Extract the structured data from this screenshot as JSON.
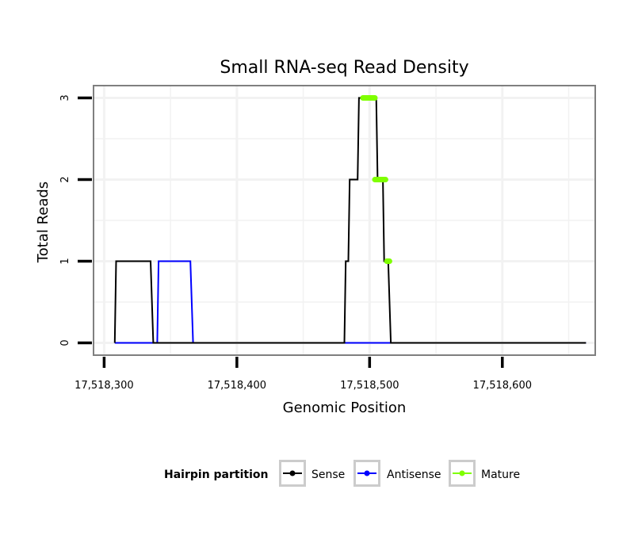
{
  "chart_data": {
    "type": "line",
    "title": "Small RNA-seq Read Density",
    "xlabel": "Genomic Position",
    "ylabel": "Total Reads",
    "xlim": [
      17518292,
      17518670
    ],
    "ylim": [
      -0.15,
      3.15
    ],
    "x_ticks": [
      17518300,
      17518400,
      17518500,
      17518600
    ],
    "x_tick_labels": [
      "17,518,300",
      "17,518,400",
      "17,518,500",
      "17,518,600"
    ],
    "y_ticks": [
      0,
      1,
      2,
      3
    ],
    "y_tick_labels": [
      "0",
      "1",
      "2",
      "3"
    ],
    "grid": true,
    "legend": {
      "position": "bottom",
      "title": "Hairpin partition",
      "entries": [
        {
          "label": "Sense",
          "color": "#000000"
        },
        {
          "label": "Antisense",
          "color": "#0000ff"
        },
        {
          "label": "Mature",
          "color": "#7fff00"
        }
      ]
    },
    "series": [
      {
        "name": "Antisense",
        "color": "#0000ff",
        "x": [
          17518308,
          17518340,
          17518341,
          17518365,
          17518367,
          17518484,
          17518515,
          17518663
        ],
        "y": [
          0,
          0,
          1,
          1,
          0,
          0,
          0,
          0
        ]
      },
      {
        "name": "Sense",
        "color": "#000000",
        "x": [
          17518308,
          17518309,
          17518335,
          17518337,
          17518481,
          17518482,
          17518484,
          17518485,
          17518491,
          17518492,
          17518494,
          17518505,
          17518506,
          17518510,
          17518511,
          17518513,
          17518514,
          17518516,
          17518663
        ],
        "y": [
          0,
          1,
          1,
          0,
          0,
          1,
          1,
          2,
          2,
          3,
          3,
          3,
          2,
          2,
          1,
          1,
          1,
          0,
          0
        ]
      },
      {
        "name": "Mature",
        "color": "#7fff00",
        "segments": [
          {
            "x": [
              17518495,
              17518504
            ],
            "y": [
              3,
              3
            ]
          },
          {
            "x": [
              17518504,
              17518512
            ],
            "y": [
              2,
              2
            ]
          },
          {
            "x": [
              17518513,
              17518515
            ],
            "y": [
              1,
              1
            ]
          }
        ]
      }
    ]
  }
}
